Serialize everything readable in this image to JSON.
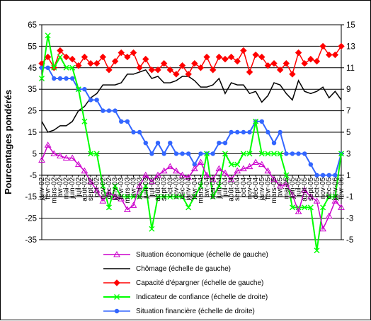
{
  "chart_data": {
    "type": "line",
    "ylabel": "Pourcentages pondérés",
    "y_left_ticks": [
      "65",
      "55",
      "45",
      "35",
      "25",
      "15",
      "5",
      "-5",
      "-15",
      "-25",
      "-35"
    ],
    "y_right_ticks": [
      "15",
      "13",
      "11",
      "9",
      "7",
      "5",
      "3",
      "1",
      "-1",
      "-3",
      "-5"
    ],
    "ylim_left": [
      -35,
      65
    ],
    "ylim_right": [
      -5,
      15
    ],
    "grid": "horizontal",
    "legend_position": "bottom",
    "x": [
      "janv-02",
      "févr-02",
      "mars-02",
      "avr-02",
      "mai-02",
      "juin-02",
      "juil-02",
      "août-02",
      "sept-02",
      "oct-02",
      "nov-02",
      "déc-02",
      "janv-03",
      "févr-03",
      "mars-03",
      "avr-03",
      "mai-03",
      "juin-03",
      "juil-03",
      "août-03",
      "sept-03",
      "oct-03",
      "nov-03",
      "déc-03",
      "janv-04",
      "févr-04",
      "mars-04",
      "avr-04",
      "mai-04",
      "juin-04",
      "juil-04",
      "août-04",
      "sept-04",
      "oct-04",
      "nov-04",
      "déc-04",
      "janv-05",
      "févr-05",
      "mars-05",
      "avr-05",
      "mai-05",
      "juin-05",
      "juil-05",
      "août-05",
      "sept-05",
      "oct-05",
      "nov-05",
      "déc-05",
      "janv-06",
      "févr-06"
    ],
    "series": [
      {
        "name": "Situation économique (échelle de gauche)",
        "axis": "left",
        "color": "#CC00CC",
        "marker": "triangle",
        "values": [
          2,
          9,
          5,
          4,
          3,
          3,
          0,
          -3,
          -8,
          -12,
          -17,
          -13,
          -15,
          -16,
          -21,
          -19,
          -10,
          -5,
          -8,
          -5,
          -3,
          -1,
          -3,
          -5,
          -6,
          -2,
          1,
          -5,
          -7,
          -2,
          -4,
          -7,
          -3,
          -2,
          -1,
          1,
          0,
          -3,
          -7,
          -10,
          -9,
          -14,
          -22,
          -12,
          -15,
          -17,
          -30,
          -24,
          -17,
          -20
        ]
      },
      {
        "name": "Chômage (échelle de gauche)",
        "axis": "left",
        "color": "#000000",
        "marker": "none",
        "values": [
          20,
          15,
          16,
          18,
          18,
          20,
          25,
          27,
          31,
          33,
          37,
          37,
          37,
          38,
          42,
          42,
          43,
          44,
          40,
          41,
          38,
          38,
          39,
          41,
          41,
          39,
          36,
          36,
          37,
          40,
          33,
          38,
          37,
          37,
          33,
          34,
          29,
          32,
          38,
          37,
          33,
          30,
          39,
          34,
          33,
          34,
          36,
          31,
          34,
          30
        ]
      },
      {
        "name": "Capacité d'épargner (échelle de gauche)",
        "axis": "left",
        "color": "#FF0000",
        "marker": "diamond",
        "values": [
          47,
          50,
          45,
          53,
          50,
          49,
          46,
          50,
          47,
          47,
          50,
          44,
          48,
          52,
          50,
          52,
          45,
          49,
          44,
          44,
          47,
          44,
          42,
          46,
          42,
          47,
          45,
          50,
          44,
          50,
          49,
          50,
          48,
          53,
          43,
          51,
          50,
          46,
          47,
          44,
          47,
          42,
          52,
          47,
          49,
          48,
          55,
          51,
          51,
          55
        ]
      },
      {
        "name": "Indicateur de confiance (échelle de droite)",
        "axis": "right",
        "color": "#00FF00",
        "marker": "x",
        "values": [
          10,
          14,
          11,
          12,
          11,
          11,
          9,
          6,
          3,
          3,
          0,
          -2,
          0,
          -1,
          -1,
          -1,
          -1,
          0,
          -4,
          -1,
          -1,
          -1,
          -1,
          -1,
          -2,
          -1,
          0,
          3,
          -1,
          0,
          3,
          2,
          2,
          3,
          3,
          6,
          3,
          3,
          3,
          3,
          1,
          -2,
          -2,
          -2,
          -2,
          -6,
          -2,
          -1,
          -1,
          3
        ]
      },
      {
        "name": "Situation financière (échelle de droite)",
        "axis": "right",
        "color": "#3366FF",
        "marker": "circle",
        "values": [
          11,
          11,
          10,
          10,
          10,
          10,
          9,
          9,
          8,
          8,
          7,
          7,
          7,
          6,
          6,
          5,
          5,
          4,
          3,
          4,
          3,
          4,
          3,
          3,
          3,
          2,
          3,
          3,
          3,
          4,
          4,
          5,
          5,
          5,
          5,
          6,
          6,
          5,
          4,
          5,
          3,
          3,
          3,
          3,
          2,
          1,
          1,
          1,
          1,
          3
        ]
      }
    ]
  }
}
